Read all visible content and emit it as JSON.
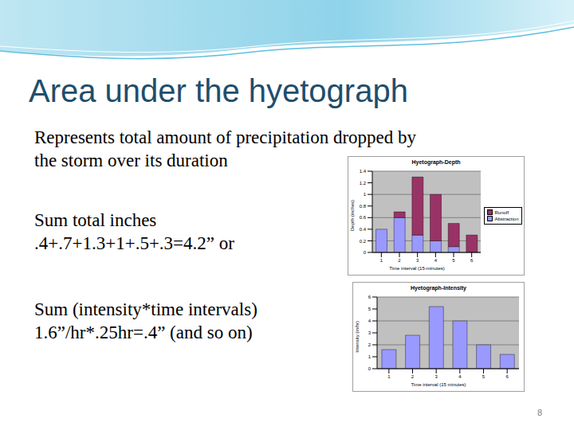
{
  "slide": {
    "title": "Area under the hyetograph",
    "paragraphs": [
      [
        "Represents total amount of precipitation dropped by",
        "the storm over its duration"
      ],
      [
        "Sum total inches",
        ".4+.7+1.3+1+.5+.3=4.2” or"
      ],
      [
        "Sum (intensity*time intervals)",
        "1.6”/hr*.25hr=.4” (and so on)"
      ]
    ],
    "page": 8
  },
  "chart_data": [
    {
      "type": "bar",
      "title": "Hyetograph-Depth",
      "x_label": "Time interval (15-minutes)",
      "y_label": "Depth (inches)",
      "categories": [
        "1",
        "2",
        "3",
        "4",
        "5",
        "6"
      ],
      "series": [
        {
          "name": "Abstraction",
          "color": "#9999ff",
          "values": [
            0.4,
            0.6,
            0.3,
            0.2,
            0.1,
            0
          ]
        },
        {
          "name": "Runoff",
          "color": "#993366",
          "values": [
            0,
            0.1,
            1.0,
            0.8,
            0.4,
            0.3
          ]
        }
      ],
      "stacked": true,
      "ylim": [
        0,
        1.4
      ],
      "yticks": [
        0,
        0.2,
        0.4,
        0.6,
        0.8,
        1,
        1.2,
        1.4
      ],
      "grid": true,
      "legend": "right"
    },
    {
      "type": "bar",
      "title": "Hyetograph-Intensity",
      "x_label": "Time interval (15 minutes)",
      "y_label": "Intensity (in/hr)",
      "categories": [
        "1",
        "2",
        "3",
        "4",
        "5",
        "6"
      ],
      "series": [
        {
          "name": "Intensity",
          "color": "#9999ff",
          "values": [
            1.6,
            2.8,
            5.2,
            4,
            2,
            1.2
          ]
        }
      ],
      "ylim": [
        0,
        6
      ],
      "yticks": [
        0,
        1,
        2,
        3,
        4,
        5,
        6
      ],
      "grid": true
    }
  ]
}
